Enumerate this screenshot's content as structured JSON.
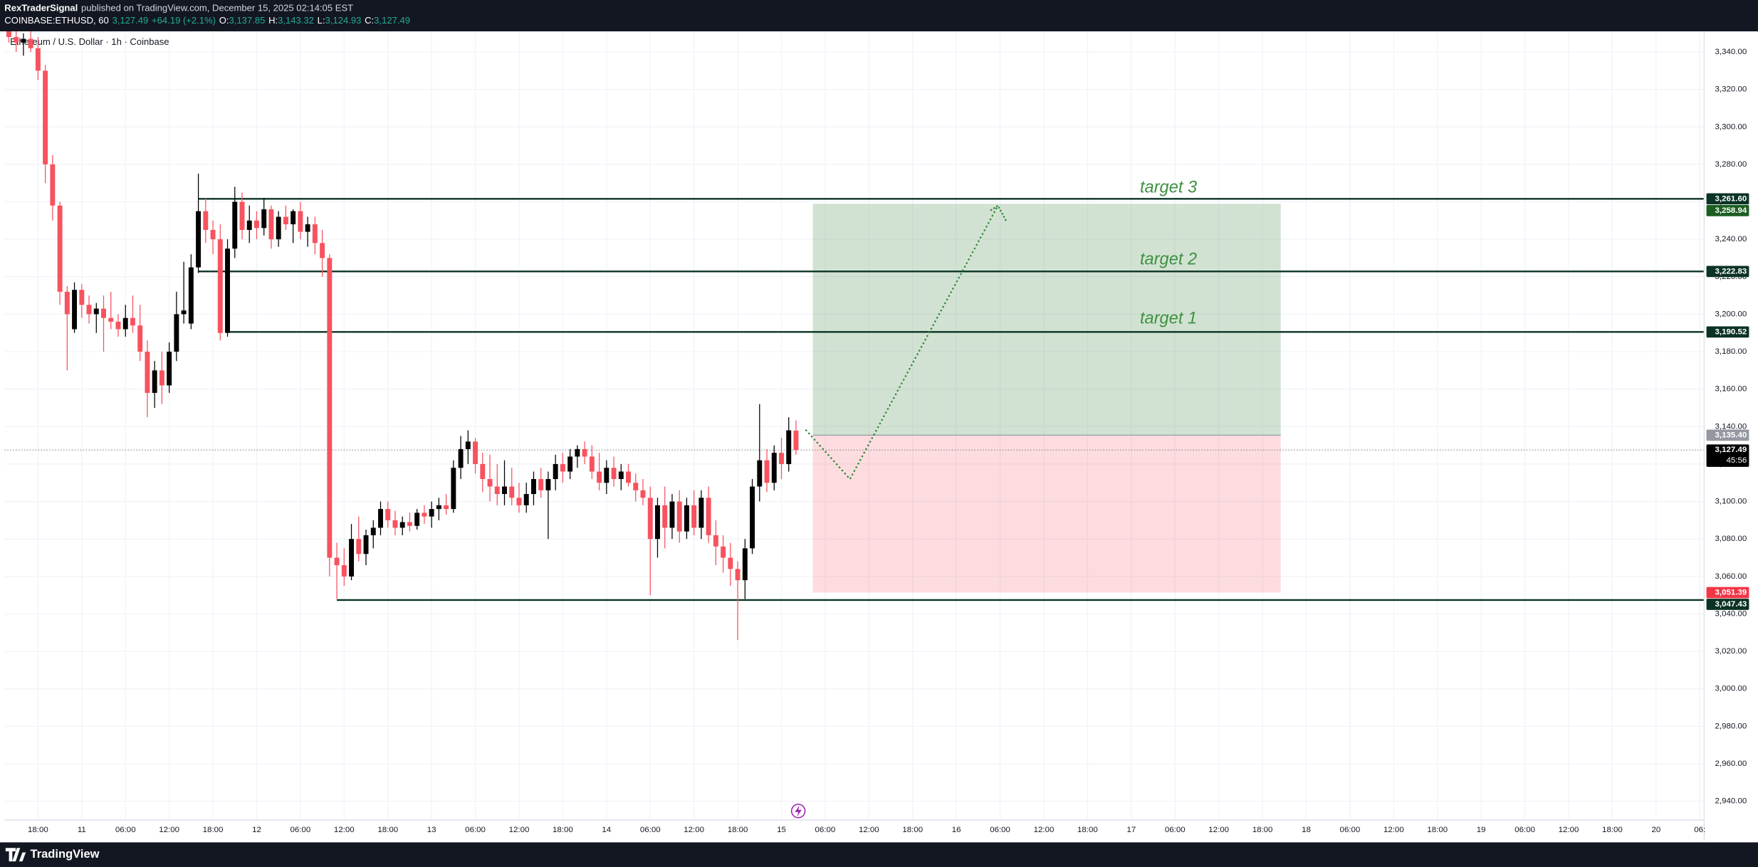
{
  "header": {
    "publisher": "RexTraderSignal",
    "published": "published on TradingView.com, December 15, 2025 02:14:05 EST",
    "symbol": "COINBASE:ETHUSD, 60",
    "price": "3,127.49",
    "change": "+64.19 (+2.1%)",
    "ohlc": [
      {
        "label": "O:",
        "value": "3,137.85"
      },
      {
        "label": "H:",
        "value": "3,143.32"
      },
      {
        "label": "L:",
        "value": "3,124.93"
      },
      {
        "label": "C:",
        "value": "3,127.49"
      }
    ]
  },
  "footer": {
    "brand": "TradingView"
  },
  "chart_data": {
    "type": "candlestick",
    "title": "Ethereum / U.S. Dollar · 1h · Coinbase",
    "up_color": "#000000",
    "down_color": "#f7525f",
    "grid": true,
    "x": [
      14,
      15,
      16,
      17,
      18,
      19,
      20,
      21,
      22,
      23,
      24,
      25,
      26,
      27,
      28,
      29,
      30,
      31,
      32,
      33,
      34,
      35,
      36,
      37,
      38,
      39,
      40,
      41,
      42,
      43,
      44,
      45,
      46,
      47,
      48,
      49,
      50,
      51,
      52,
      53,
      54,
      55,
      56,
      57,
      58,
      59,
      60,
      61,
      62,
      63,
      64,
      65,
      66,
      67,
      68,
      69,
      70,
      71,
      72,
      73,
      74,
      75,
      76,
      77,
      78,
      79,
      80,
      81,
      82,
      83,
      84,
      85,
      86,
      87,
      88,
      89,
      90,
      91,
      92,
      93,
      94,
      95,
      96,
      97,
      98,
      99,
      100,
      101,
      102,
      103,
      104,
      105,
      106,
      107,
      108,
      109,
      110,
      111,
      112,
      113,
      114,
      115,
      116,
      117,
      118,
      119,
      120,
      121,
      122
    ],
    "open": [
      3352,
      3348,
      3345,
      3347,
      3342,
      3330,
      3280,
      3258,
      3212,
      3192,
      3213,
      3205,
      3200,
      3203,
      3198,
      3196,
      3192,
      3198,
      3194,
      3180,
      3158,
      3170,
      3162,
      3180,
      3200,
      3195,
      3225,
      3255,
      3245,
      3240,
      3190,
      3235,
      3260,
      3245,
      3250,
      3246,
      3256,
      3240,
      3252,
      3248,
      3255,
      3244,
      3248,
      3238,
      3230,
      3070,
      3066,
      3060,
      3080,
      3072,
      3082,
      3086,
      3096,
      3090,
      3086,
      3089,
      3087,
      3094,
      3092,
      3096,
      3098,
      3096,
      3118,
      3128,
      3132,
      3120,
      3112,
      3108,
      3104,
      3108,
      3102,
      3098,
      3104,
      3112,
      3106,
      3112,
      3120,
      3116,
      3124,
      3128,
      3124,
      3116,
      3110,
      3118,
      3112,
      3116,
      3110,
      3106,
      3102,
      3080,
      3098,
      3086,
      3100,
      3084,
      3098,
      3086,
      3102,
      3082,
      3076,
      3070,
      3064,
      3058,
      3075,
      3108,
      3122,
      3110,
      3126,
      3120,
      3137.85
    ],
    "high": [
      3355,
      3352,
      3350,
      3352,
      3348,
      3333,
      3285,
      3260,
      3215,
      3217,
      3216,
      3210,
      3206,
      3210,
      3212,
      3200,
      3205,
      3210,
      3205,
      3186,
      3175,
      3180,
      3185,
      3212,
      3228,
      3232,
      3275,
      3262,
      3250,
      3248,
      3240,
      3268,
      3265,
      3258,
      3255,
      3262,
      3258,
      3255,
      3258,
      3256,
      3260,
      3252,
      3252,
      3245,
      3232,
      3078,
      3075,
      3088,
      3092,
      3085,
      3090,
      3100,
      3100,
      3095,
      3092,
      3094,
      3096,
      3098,
      3100,
      3102,
      3104,
      3122,
      3135,
      3138,
      3134,
      3126,
      3125,
      3120,
      3122,
      3118,
      3110,
      3110,
      3116,
      3118,
      3116,
      3125,
      3126,
      3128,
      3130,
      3132,
      3130,
      3126,
      3122,
      3124,
      3120,
      3120,
      3115,
      3112,
      3108,
      3102,
      3108,
      3104,
      3106,
      3102,
      3106,
      3106,
      3108,
      3090,
      3082,
      3078,
      3068,
      3080,
      3112,
      3152,
      3128,
      3130,
      3134,
      3145,
      3143.32
    ],
    "low": [
      3345,
      3340,
      3338,
      3340,
      3325,
      3270,
      3250,
      3205,
      3170,
      3190,
      3198,
      3195,
      3190,
      3180,
      3192,
      3188,
      3188,
      3190,
      3175,
      3145,
      3150,
      3152,
      3158,
      3175,
      3195,
      3192,
      3222,
      3238,
      3232,
      3186,
      3188,
      3230,
      3240,
      3238,
      3240,
      3242,
      3235,
      3236,
      3245,
      3238,
      3240,
      3236,
      3232,
      3220,
      3060,
      3048,
      3055,
      3058,
      3068,
      3066,
      3075,
      3082,
      3086,
      3082,
      3082,
      3084,
      3085,
      3088,
      3086,
      3090,
      3093,
      3094,
      3112,
      3120,
      3115,
      3105,
      3100,
      3098,
      3098,
      3098,
      3094,
      3094,
      3098,
      3102,
      3080,
      3106,
      3110,
      3112,
      3118,
      3120,
      3112,
      3106,
      3104,
      3108,
      3106,
      3108,
      3100,
      3098,
      3050,
      3070,
      3075,
      3080,
      3078,
      3080,
      3082,
      3080,
      3078,
      3066,
      3062,
      3055,
      3026,
      3048,
      3072,
      3100,
      3105,
      3106,
      3112,
      3116,
      3124.93
    ],
    "close": [
      3348,
      3345,
      3347,
      3342,
      3330,
      3280,
      3258,
      3212,
      3200,
      3213,
      3205,
      3200,
      3203,
      3198,
      3196,
      3192,
      3198,
      3194,
      3180,
      3158,
      3170,
      3162,
      3180,
      3200,
      3202,
      3225,
      3255,
      3245,
      3240,
      3190,
      3235,
      3260,
      3245,
      3250,
      3246,
      3256,
      3240,
      3252,
      3248,
      3255,
      3244,
      3248,
      3238,
      3230,
      3070,
      3066,
      3060,
      3080,
      3072,
      3082,
      3086,
      3096,
      3090,
      3086,
      3089,
      3087,
      3094,
      3092,
      3096,
      3098,
      3096,
      3118,
      3128,
      3132,
      3120,
      3112,
      3108,
      3104,
      3108,
      3102,
      3098,
      3104,
      3112,
      3106,
      3112,
      3120,
      3116,
      3124,
      3128,
      3124,
      3116,
      3110,
      3118,
      3112,
      3116,
      3110,
      3106,
      3102,
      3080,
      3098,
      3086,
      3100,
      3084,
      3098,
      3086,
      3102,
      3082,
      3076,
      3070,
      3064,
      3058,
      3075,
      3108,
      3122,
      3110,
      3126,
      3120,
      3138,
      3127.49
    ],
    "xlim": [
      13.4,
      246.6
    ],
    "xticks": [
      {
        "value": 18,
        "label": "18:00"
      },
      {
        "value": 24,
        "label": "11"
      },
      {
        "value": 30,
        "label": "06:00"
      },
      {
        "value": 36,
        "label": "12:00"
      },
      {
        "value": 42,
        "label": "18:00"
      },
      {
        "value": 48,
        "label": "12"
      },
      {
        "value": 54,
        "label": "06:00"
      },
      {
        "value": 60,
        "label": "12:00"
      },
      {
        "value": 66,
        "label": "18:00"
      },
      {
        "value": 72,
        "label": "13"
      },
      {
        "value": 78,
        "label": "06:00"
      },
      {
        "value": 84,
        "label": "12:00"
      },
      {
        "value": 90,
        "label": "18:00"
      },
      {
        "value": 96,
        "label": "14"
      },
      {
        "value": 102,
        "label": "06:00"
      },
      {
        "value": 108,
        "label": "12:00"
      },
      {
        "value": 114,
        "label": "18:00"
      },
      {
        "value": 120,
        "label": "15"
      },
      {
        "value": 126,
        "label": "06:00"
      },
      {
        "value": 132,
        "label": "12:00"
      },
      {
        "value": 138,
        "label": "18:00"
      },
      {
        "value": 144,
        "label": "16"
      },
      {
        "value": 150,
        "label": "06:00"
      },
      {
        "value": 156,
        "label": "12:00"
      },
      {
        "value": 162,
        "label": "18:00"
      },
      {
        "value": 168,
        "label": "17"
      },
      {
        "value": 174,
        "label": "06:00"
      },
      {
        "value": 180,
        "label": "12:00"
      },
      {
        "value": 186,
        "label": "18:00"
      },
      {
        "value": 192,
        "label": "18"
      },
      {
        "value": 198,
        "label": "06:00"
      },
      {
        "value": 204,
        "label": "12:00"
      },
      {
        "value": 210,
        "label": "18:00"
      },
      {
        "value": 216,
        "label": "19"
      },
      {
        "value": 222,
        "label": "06:00"
      },
      {
        "value": 228,
        "label": "12:00"
      },
      {
        "value": 234,
        "label": "18:00"
      },
      {
        "value": 240,
        "label": "20"
      },
      {
        "value": 246,
        "label": "06:"
      }
    ],
    "ylim": [
      2930,
      3351
    ],
    "yticks": [
      {
        "value": 2940,
        "label": "2,940.00"
      },
      {
        "value": 2960,
        "label": "2,960.00"
      },
      {
        "value": 2980,
        "label": "2,980.00"
      },
      {
        "value": 3000,
        "label": "3,000.00"
      },
      {
        "value": 3020,
        "label": "3,020.00"
      },
      {
        "value": 3040,
        "label": "3,040.00"
      },
      {
        "value": 3060,
        "label": "3,060.00"
      },
      {
        "value": 3080,
        "label": "3,080.00"
      },
      {
        "value": 3100,
        "label": "3,100.00"
      },
      {
        "value": 3120,
        "label": "3,120.00"
      },
      {
        "value": 3140,
        "label": "3,140.00"
      },
      {
        "value": 3160,
        "label": "3,160.00"
      },
      {
        "value": 3180,
        "label": "3,180.00"
      },
      {
        "value": 3200,
        "label": "3,200.00"
      },
      {
        "value": 3220,
        "label": "3,220.00"
      },
      {
        "value": 3240,
        "label": "3,240.00"
      },
      {
        "value": 3260,
        "label": "3,260.00"
      },
      {
        "value": 3280,
        "label": "3,280.00"
      },
      {
        "value": 3300,
        "label": "3,300.00"
      },
      {
        "value": 3320,
        "label": "3,320.00"
      },
      {
        "value": 3340,
        "label": "3,340.00"
      }
    ],
    "levels": [
      {
        "value": 3261.6,
        "label": "3,261.60",
        "from": 40
      },
      {
        "value": 3222.83,
        "label": "3,222.83",
        "from": 40
      },
      {
        "value": 3190.52,
        "label": "3,190.52",
        "from": 44
      },
      {
        "value": 3047.43,
        "label": "3,047.43",
        "from": 59
      }
    ],
    "level_color": "#0b3324",
    "position": {
      "x": [
        124.3,
        188.5
      ],
      "entry": 3135.4,
      "entry_label": "3,135.40",
      "target": 3258.94,
      "target_label": "3,258.94",
      "stop": 3051.39,
      "stop_label": "3,051.39"
    },
    "last_price": {
      "value": 3127.49,
      "label": "3,127.49",
      "countdown": "45:56"
    },
    "projection": {
      "x": [
        123.4,
        129.4,
        149.7
      ],
      "y": [
        3138,
        3112,
        3258
      ],
      "color": "#2e8b3a"
    },
    "annotations": [
      {
        "text": "target 3",
        "x": 173.1,
        "y": 3267.3
      },
      {
        "text": "target 2",
        "x": 173.1,
        "y": 3229
      },
      {
        "text": "target 1",
        "x": 173.1,
        "y": 3197.3
      }
    ],
    "annotation_color": "#3d9140"
  }
}
